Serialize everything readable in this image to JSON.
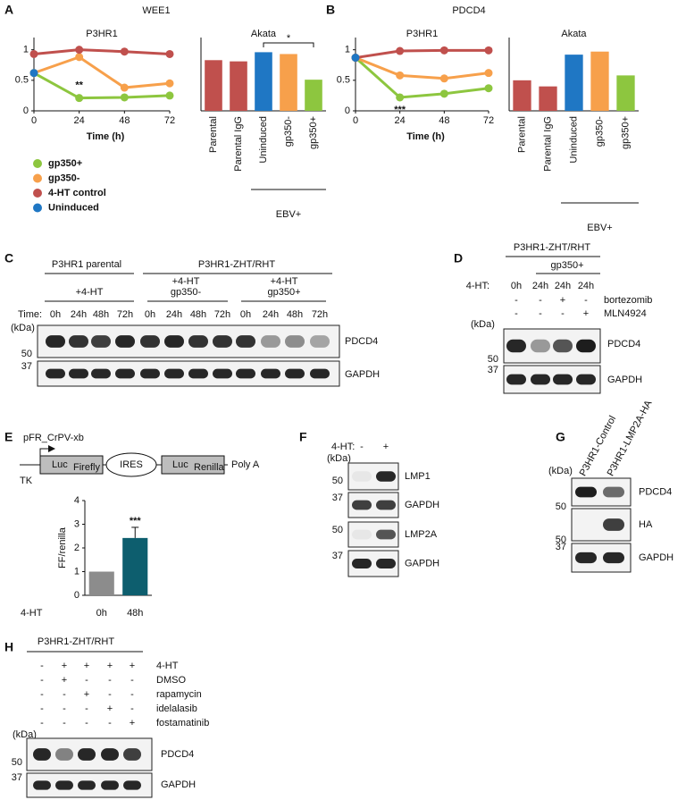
{
  "chart_data": [
    {
      "type": "line",
      "panel_label": "A",
      "figure_title": "WEE1",
      "title": "P3HR1",
      "xlabel": "Time (h)",
      "x": [
        0,
        24,
        48,
        72
      ],
      "xlim": [
        0,
        72
      ],
      "xticks": [
        0,
        24,
        48,
        72
      ],
      "ylim": [
        0,
        1.2
      ],
      "yticks": [
        0,
        0.5,
        1
      ],
      "annotations": [
        "**"
      ],
      "legend": true,
      "series": [
        {
          "name": "gp350+",
          "color": "#8dc63f",
          "values": [
            0.62,
            0.21,
            0.22,
            0.25
          ]
        },
        {
          "name": "gp350-",
          "color": "#f7a04b",
          "values": [
            0.62,
            0.88,
            0.38,
            0.45
          ]
        },
        {
          "name": "4-HT control",
          "color": "#c0504d",
          "values": [
            0.93,
            1.0,
            0.97,
            0.93
          ]
        },
        {
          "name": "Uninduced",
          "color": "#1f77c4",
          "values": [
            0.62,
            null,
            null,
            null
          ]
        }
      ]
    },
    {
      "type": "bar",
      "title": "Akata",
      "categories": [
        "Parental",
        "Parental IgG",
        "Uninduced",
        "gp350-",
        "gp350+"
      ],
      "values": [
        0.83,
        0.81,
        0.96,
        0.93,
        0.51
      ],
      "colors": [
        "#c0504d",
        "#c0504d",
        "#1f77c4",
        "#f7a04b",
        "#8dc63f"
      ],
      "ylim": [
        0,
        1.2
      ],
      "group_label": "EBV+",
      "annotations": [
        "*"
      ]
    },
    {
      "type": "line",
      "panel_label": "B",
      "figure_title": "PDCD4",
      "title": "P3HR1",
      "xlabel": "Time (h)",
      "x": [
        0,
        24,
        48,
        72
      ],
      "xlim": [
        0,
        72
      ],
      "xticks": [
        0,
        24,
        48,
        72
      ],
      "ylim": [
        0,
        1.2
      ],
      "yticks": [
        0,
        0.5,
        1
      ],
      "annotations": [
        "***"
      ],
      "legend": false,
      "series": [
        {
          "color": "#8dc63f",
          "values": [
            0.87,
            0.22,
            0.28,
            0.37
          ]
        },
        {
          "color": "#f7a04b",
          "values": [
            0.87,
            0.58,
            0.53,
            0.62
          ]
        },
        {
          "color": "#c0504d",
          "values": [
            0.87,
            0.98,
            0.99,
            0.99
          ]
        },
        {
          "color": "#1f77c4",
          "values": [
            0.87,
            null,
            null,
            null
          ]
        }
      ]
    },
    {
      "type": "bar",
      "title": "Akata",
      "categories": [
        "Parental",
        "Parental IgG",
        "Uninduced",
        "gp350-",
        "gp350+"
      ],
      "values": [
        0.5,
        0.4,
        0.92,
        0.97,
        0.58
      ],
      "colors": [
        "#c0504d",
        "#c0504d",
        "#1f77c4",
        "#f7a04b",
        "#8dc63f"
      ],
      "ylim": [
        0,
        1.2
      ],
      "group_label": "EBV+"
    },
    {
      "type": "bar",
      "ylabel": "FF/renilla",
      "xlabel": "4-HT",
      "categories": [
        "0h",
        "48h"
      ],
      "values": [
        1,
        2.42
      ],
      "errors": [
        null,
        0.45
      ],
      "colors": [
        "#8c8c8c",
        "#0d5e6e"
      ],
      "ylim": [
        0,
        4
      ],
      "yticks": [
        0,
        1,
        2,
        3,
        4
      ],
      "annotations": [
        "***"
      ]
    }
  ],
  "panels": {
    "C": {
      "label": "C",
      "groups": [
        "P3HR1 parental",
        "P3HR1-ZHT/RHT"
      ],
      "conditions": [
        [
          "+4-HT"
        ],
        [
          "+4-HT",
          "gp350-"
        ],
        [
          "+4-HT",
          "gp350+"
        ]
      ],
      "time_label": "Time:",
      "lanes": [
        "0h",
        "24h",
        "48h",
        "72h",
        "0h",
        "24h",
        "48h",
        "72h",
        "0h",
        "24h",
        "48h",
        "72h"
      ],
      "kda": "(kDa)",
      "blots": [
        {
          "name": "PDCD4",
          "marker": "50"
        },
        {
          "name": "GAPDH",
          "marker": "37"
        }
      ]
    },
    "D": {
      "label": "D",
      "group": "P3HR1-ZHT/RHT",
      "subgroup": "gp350+",
      "row_labels": [
        "4-HT:",
        "bortezomib",
        "MLN4924"
      ],
      "rows": [
        [
          "0h",
          "24h",
          "24h",
          "24h"
        ],
        [
          "-",
          "-",
          "+",
          "-"
        ],
        [
          "-",
          "-",
          "-",
          "+"
        ]
      ],
      "kda": "(kDa)",
      "blots": [
        {
          "name": "PDCD4",
          "marker": "50"
        },
        {
          "name": "GAPDH",
          "marker": "37"
        }
      ]
    },
    "E": {
      "label": "E",
      "construct": "pFR_CrPV-xb",
      "promoter": "TK",
      "firefly": {
        "main": "Luc",
        "sub": "Firefly"
      },
      "ires": "IRES",
      "renilla": {
        "main": "Luc",
        "sub": "Renilla"
      },
      "polya": "Poly A"
    },
    "F": {
      "label": "F",
      "treatment": "4-HT:",
      "lanes": [
        "-",
        "+"
      ],
      "kda": "(kDa)",
      "blots": [
        {
          "name": "LMP1",
          "marker": "50"
        },
        {
          "name": "GAPDH",
          "marker": "37"
        },
        {
          "name": "LMP2A",
          "marker": "50"
        },
        {
          "name": "GAPDH",
          "marker": "37"
        }
      ]
    },
    "G": {
      "label": "G",
      "lanes": [
        "P3HR1-Control",
        "P3HR1-LMP2A-HA"
      ],
      "kda": "(kDa)",
      "blots": [
        {
          "name": "PDCD4",
          "marker": "50"
        },
        {
          "name": "HA",
          "marker": "50"
        },
        {
          "name": "GAPDH",
          "marker": "37"
        }
      ]
    },
    "H": {
      "label": "H",
      "group": "P3HR1-ZHT/RHT",
      "row_labels": [
        "4-HT",
        "DMSO",
        "rapamycin",
        "idelalasib",
        "fostamatinib"
      ],
      "rows": [
        [
          "-",
          "+",
          "+",
          "+",
          "+"
        ],
        [
          "-",
          "+",
          "-",
          "-",
          "-"
        ],
        [
          "-",
          "-",
          "+",
          "-",
          "-"
        ],
        [
          "-",
          "-",
          "-",
          "+",
          "-"
        ],
        [
          "-",
          "-",
          "-",
          "-",
          "+"
        ]
      ],
      "kda": "(kDa)",
      "blots": [
        {
          "name": "PDCD4",
          "marker": "50"
        },
        {
          "name": "GAPDH",
          "marker": "37"
        }
      ]
    }
  }
}
